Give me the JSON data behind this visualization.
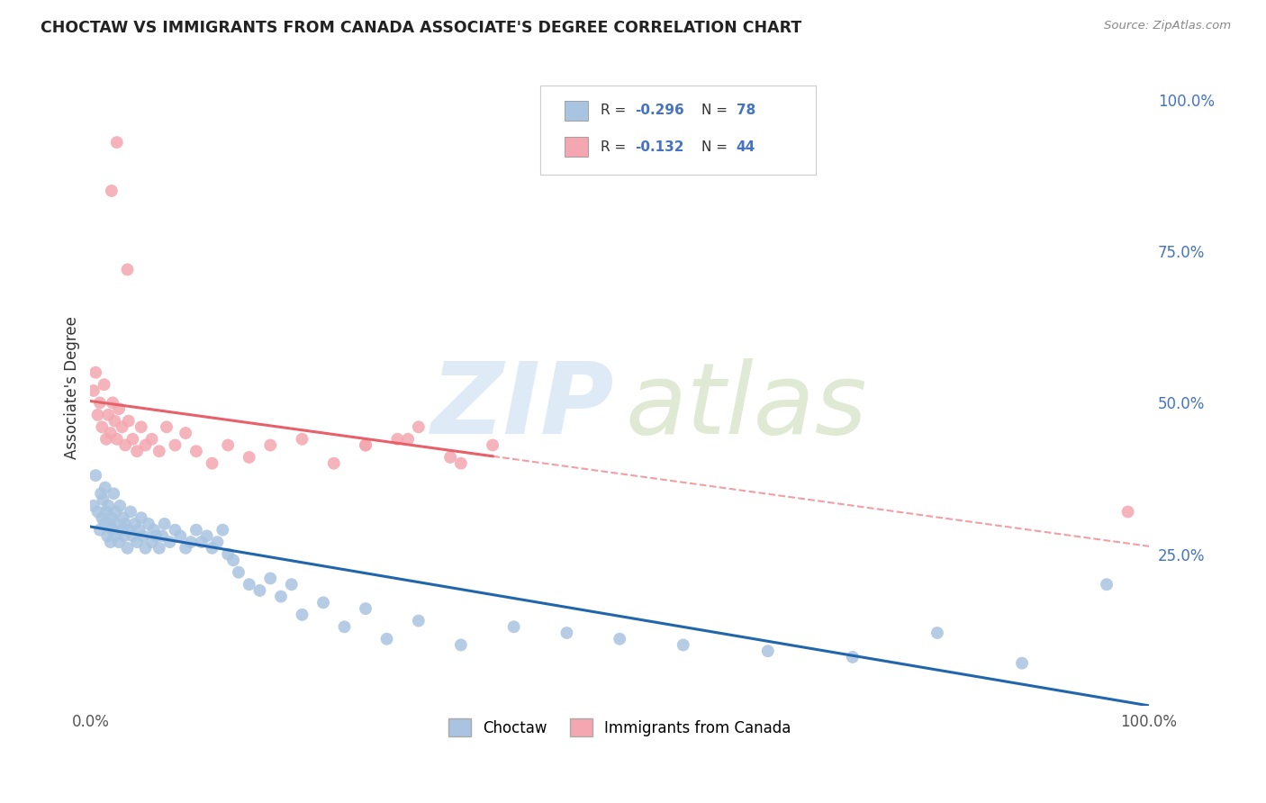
{
  "title": "CHOCTAW VS IMMIGRANTS FROM CANADA ASSOCIATE'S DEGREE CORRELATION CHART",
  "source": "Source: ZipAtlas.com",
  "ylabel": "Associate's Degree",
  "right_yticks": [
    "100.0%",
    "75.0%",
    "50.0%",
    "25.0%"
  ],
  "right_ytick_vals": [
    1.0,
    0.75,
    0.5,
    0.25
  ],
  "choctaw_color": "#a8c4e0",
  "canada_color": "#f4a7b0",
  "choctaw_line_color": "#2166ac",
  "canada_line_color": "#e8606a",
  "background_color": "#ffffff",
  "grid_color": "#e8e8e8",
  "choctaw_x": [
    0.003,
    0.005,
    0.007,
    0.009,
    0.01,
    0.011,
    0.012,
    0.013,
    0.014,
    0.015,
    0.016,
    0.017,
    0.018,
    0.019,
    0.02,
    0.021,
    0.022,
    0.023,
    0.024,
    0.025,
    0.027,
    0.028,
    0.03,
    0.031,
    0.032,
    0.033,
    0.035,
    0.036,
    0.038,
    0.04,
    0.042,
    0.044,
    0.046,
    0.048,
    0.05,
    0.052,
    0.055,
    0.058,
    0.06,
    0.062,
    0.065,
    0.068,
    0.07,
    0.075,
    0.08,
    0.085,
    0.09,
    0.095,
    0.1,
    0.105,
    0.11,
    0.115,
    0.12,
    0.125,
    0.13,
    0.135,
    0.14,
    0.15,
    0.16,
    0.17,
    0.18,
    0.19,
    0.2,
    0.22,
    0.24,
    0.26,
    0.28,
    0.31,
    0.35,
    0.4,
    0.45,
    0.5,
    0.56,
    0.64,
    0.72,
    0.8,
    0.88,
    0.96
  ],
  "choctaw_y": [
    0.33,
    0.38,
    0.32,
    0.29,
    0.35,
    0.31,
    0.34,
    0.3,
    0.36,
    0.32,
    0.28,
    0.33,
    0.3,
    0.27,
    0.31,
    0.29,
    0.35,
    0.28,
    0.32,
    0.3,
    0.27,
    0.33,
    0.29,
    0.31,
    0.28,
    0.3,
    0.26,
    0.29,
    0.32,
    0.28,
    0.3,
    0.27,
    0.29,
    0.31,
    0.28,
    0.26,
    0.3,
    0.27,
    0.29,
    0.28,
    0.26,
    0.28,
    0.3,
    0.27,
    0.29,
    0.28,
    0.26,
    0.27,
    0.29,
    0.27,
    0.28,
    0.26,
    0.27,
    0.29,
    0.25,
    0.24,
    0.22,
    0.2,
    0.19,
    0.21,
    0.18,
    0.2,
    0.15,
    0.17,
    0.13,
    0.16,
    0.11,
    0.14,
    0.1,
    0.13,
    0.12,
    0.11,
    0.1,
    0.09,
    0.08,
    0.12,
    0.07,
    0.2
  ],
  "canada_x": [
    0.003,
    0.005,
    0.007,
    0.009,
    0.011,
    0.013,
    0.015,
    0.017,
    0.019,
    0.021,
    0.023,
    0.025,
    0.027,
    0.03,
    0.033,
    0.036,
    0.04,
    0.044,
    0.048,
    0.052,
    0.058,
    0.065,
    0.072,
    0.08,
    0.09,
    0.1,
    0.115,
    0.13,
    0.15,
    0.17,
    0.2,
    0.23,
    0.26,
    0.3,
    0.34,
    0.38,
    0.31,
    0.35,
    0.29,
    0.26,
    0.035,
    0.02,
    0.025,
    0.98
  ],
  "canada_y": [
    0.52,
    0.55,
    0.48,
    0.5,
    0.46,
    0.53,
    0.44,
    0.48,
    0.45,
    0.5,
    0.47,
    0.44,
    0.49,
    0.46,
    0.43,
    0.47,
    0.44,
    0.42,
    0.46,
    0.43,
    0.44,
    0.42,
    0.46,
    0.43,
    0.45,
    0.42,
    0.4,
    0.43,
    0.41,
    0.43,
    0.44,
    0.4,
    0.43,
    0.44,
    0.41,
    0.43,
    0.46,
    0.4,
    0.44,
    0.43,
    0.72,
    0.85,
    0.93,
    0.32
  ],
  "xlim": [
    0.0,
    1.0
  ],
  "ylim": [
    0.0,
    1.05
  ]
}
